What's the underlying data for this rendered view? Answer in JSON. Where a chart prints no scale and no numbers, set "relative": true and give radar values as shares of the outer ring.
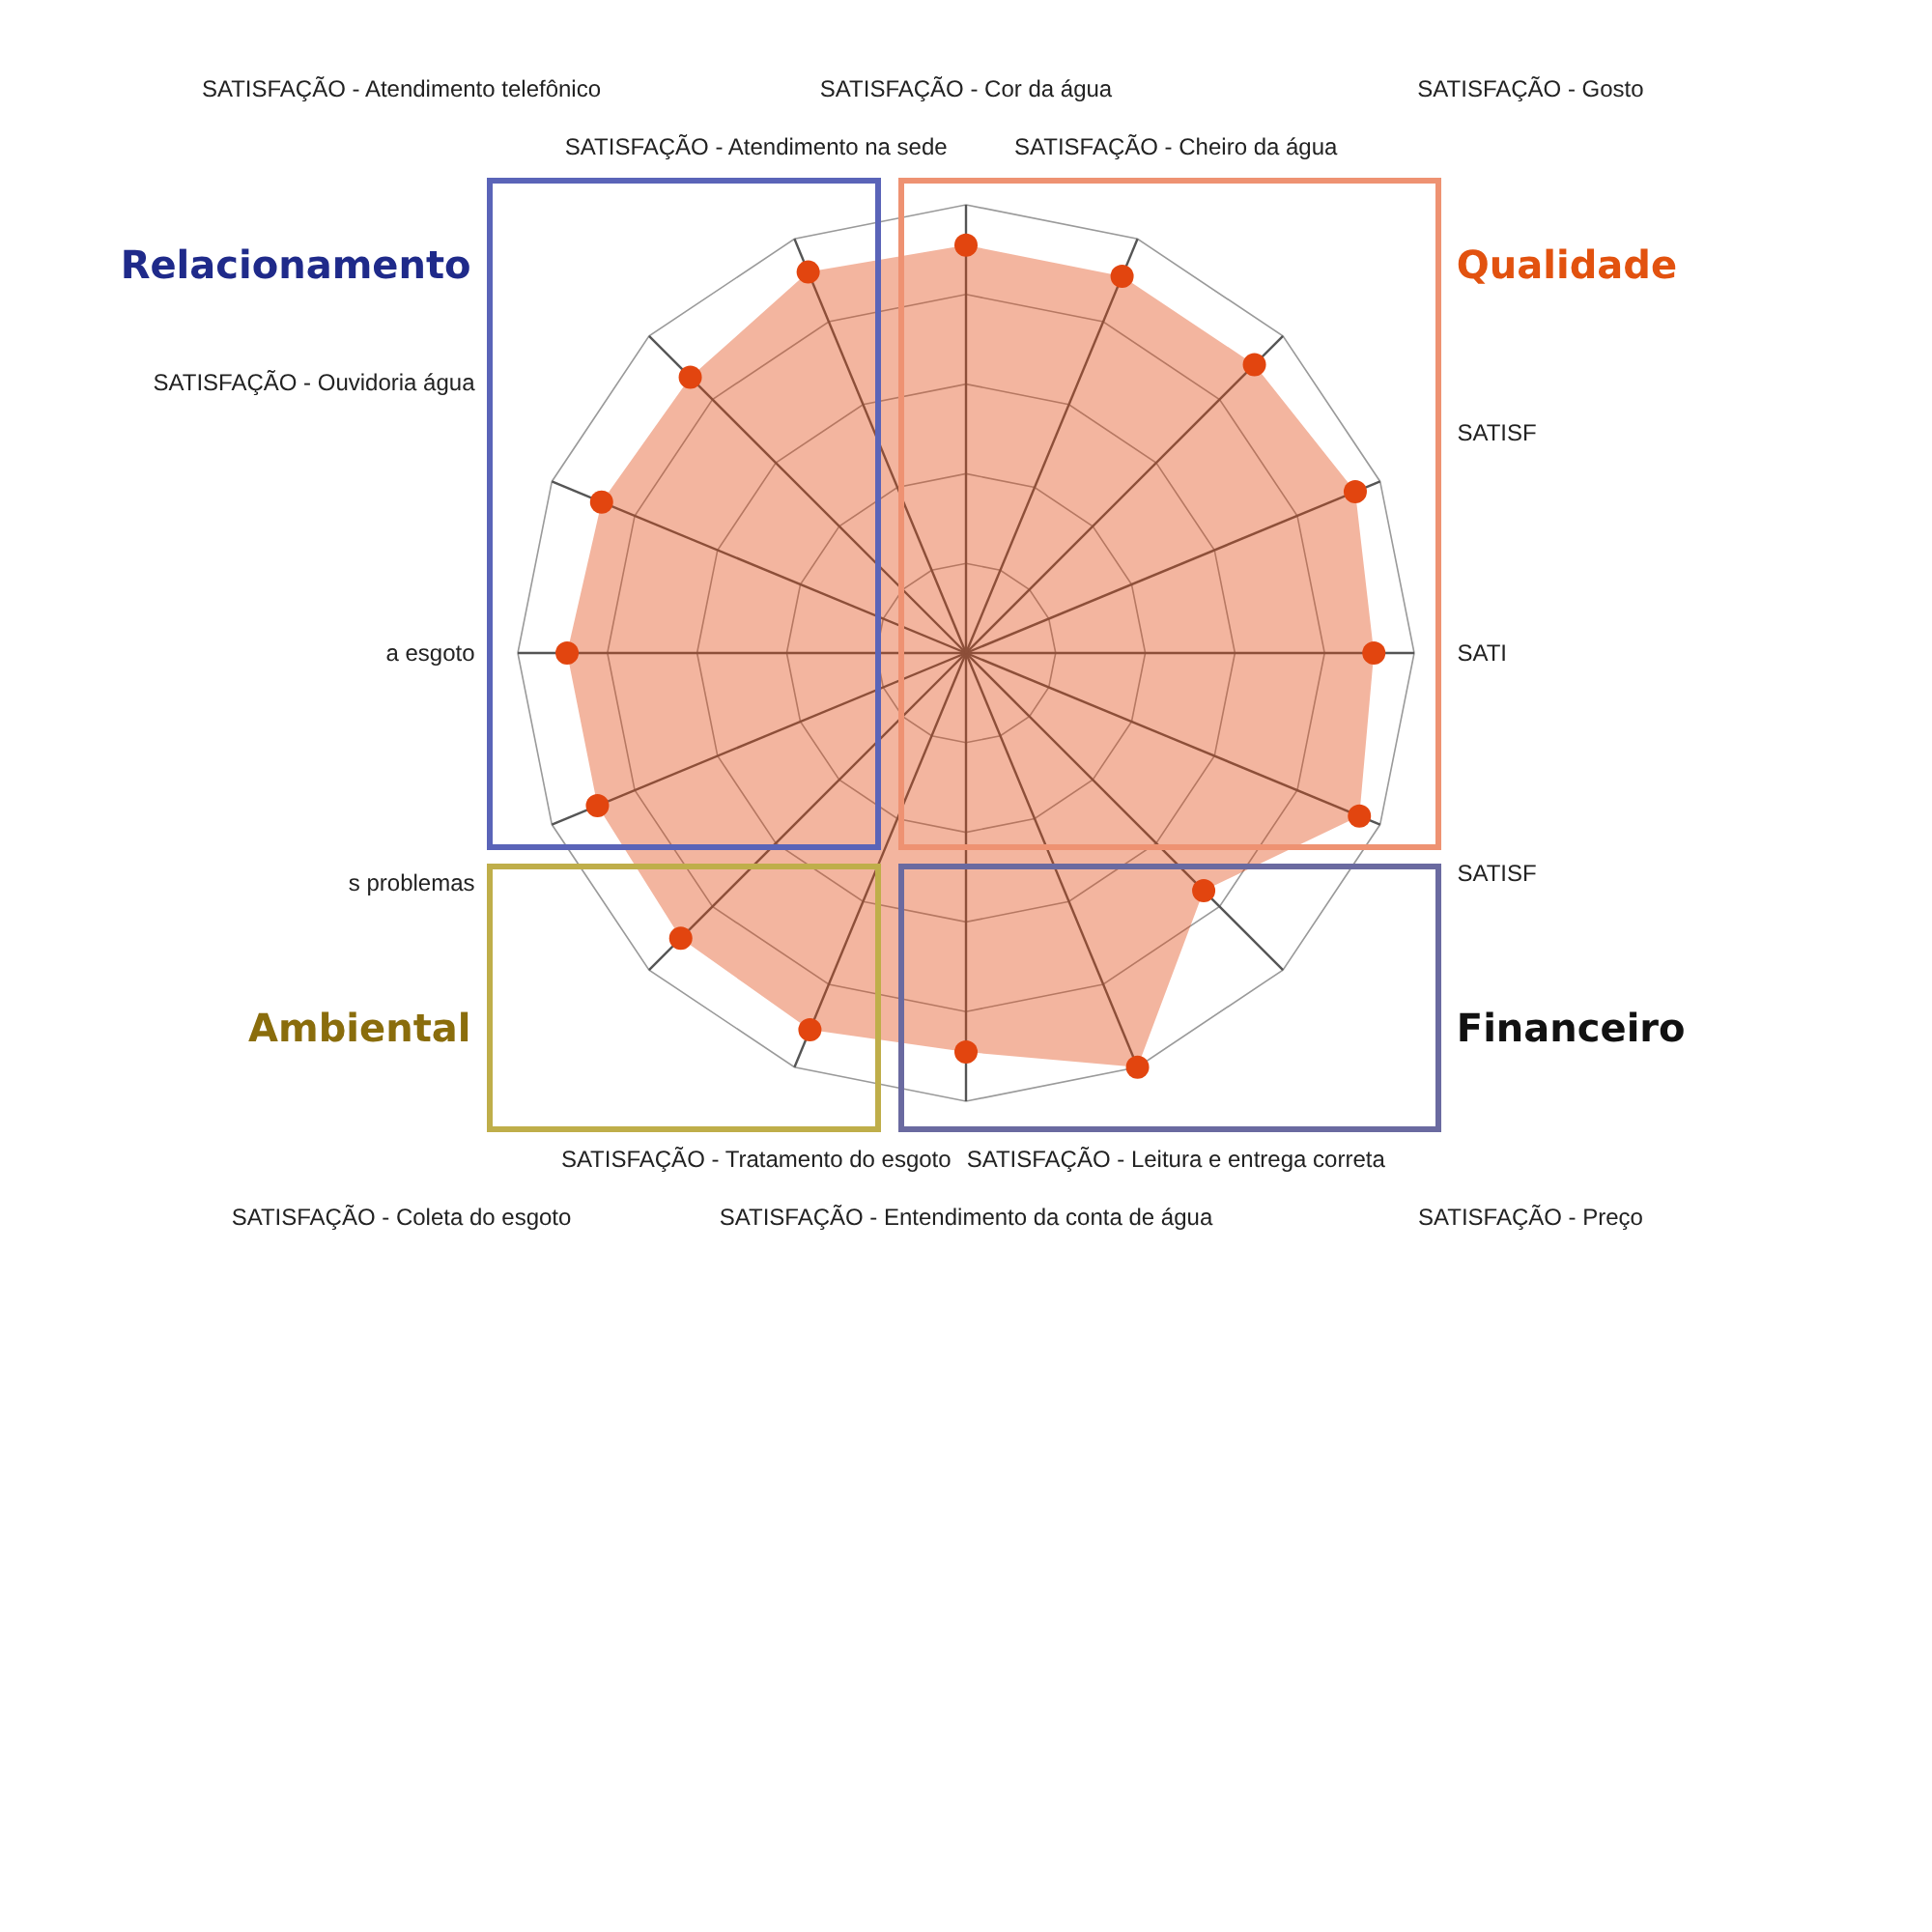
{
  "chart_data": {
    "type": "radar",
    "relative": true,
    "grid": true,
    "marker": "circle",
    "legend": false,
    "categories": [
      "SATISFAÇÃO - Cor da água",
      "SATISFAÇÃO - Cheiro da água",
      "SATISFAÇÃO - Gosto",
      "SATISF",
      "SATI",
      "SATISF",
      "SATISFAÇÃO - Preço",
      "SATISFAÇÃO - Leitura e entrega correta",
      "SATISFAÇÃO - Entendimento da conta de água",
      "SATISFAÇÃO - Tratamento do esgoto",
      "SATISFAÇÃO - Coleta do esgoto",
      "s problemas",
      "a esgoto",
      "SATISFAÇÃO - Ouvidoria água",
      "SATISFAÇÃO - Atendimento telefônico",
      "SATISFAÇÃO - Atendimento na sede"
    ],
    "series": [
      {
        "color": "#e2450f",
        "values": [
          0.91,
          0.91,
          0.91,
          0.94,
          0.91,
          0.95,
          0.75,
          1,
          0.89,
          0.91,
          0.9,
          0.89,
          0.89,
          0.88,
          0.87,
          0.92
        ]
      }
    ],
    "annotations": [
      "Relacionamento",
      "Qualidade",
      "Ambiental",
      "Financeiro"
    ]
  }
}
